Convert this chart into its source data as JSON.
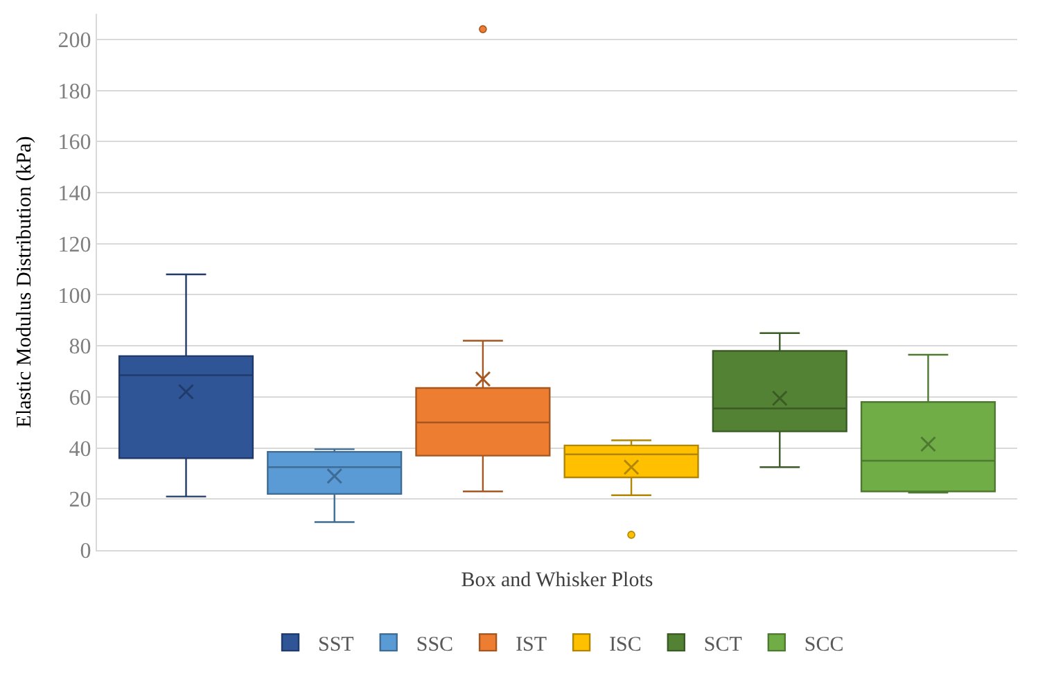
{
  "chart_data": {
    "type": "box",
    "xlabel": "Box and Whisker Plots",
    "ylabel": "Elastic Modulus Distribution (kPa)",
    "categories": [
      null
    ],
    "series": [
      {
        "name": "SST",
        "color": "#2f5597",
        "boxes": [
          {
            "low": 21,
            "q1": 36,
            "median": 68.5,
            "q3": 76,
            "high": 108,
            "mean": 62
          }
        ]
      },
      {
        "name": "SSC",
        "color": "#5b9bd5",
        "boxes": [
          {
            "low": 11,
            "q1": 22,
            "median": 32.5,
            "q3": 38.5,
            "high": 39.5,
            "mean": 29
          }
        ]
      },
      {
        "name": "IST",
        "color": "#ed7d31",
        "boxes": [
          {
            "low": 23,
            "q1": 37,
            "median": 50,
            "q3": 63.5,
            "high": 82,
            "mean": 67,
            "outliers": [
              204
            ]
          }
        ]
      },
      {
        "name": "ISC",
        "color": "#ffc000",
        "boxes": [
          {
            "low": 21.5,
            "q1": 28.5,
            "median": 37.5,
            "q3": 41,
            "high": 43,
            "mean": 32.5,
            "outliers": [
              6
            ]
          }
        ]
      },
      {
        "name": "SCT",
        "color": "#548235",
        "boxes": [
          {
            "low": 32.5,
            "q1": 46.5,
            "median": 55.5,
            "q3": 78,
            "high": 85,
            "mean": 59.5
          }
        ]
      },
      {
        "name": "SCC",
        "color": "#70ad47",
        "boxes": [
          {
            "low": 22.5,
            "q1": 23,
            "median": 35,
            "q3": 58,
            "high": 76.5,
            "mean": 41.5
          }
        ]
      }
    ],
    "ylim": [
      0,
      210
    ],
    "yticks": [
      0,
      20,
      40,
      60,
      80,
      100,
      120,
      140,
      160,
      180,
      200
    ],
    "grid": "y",
    "legend": "bottom",
    "tick_labels": "y",
    "marker": "cross"
  }
}
